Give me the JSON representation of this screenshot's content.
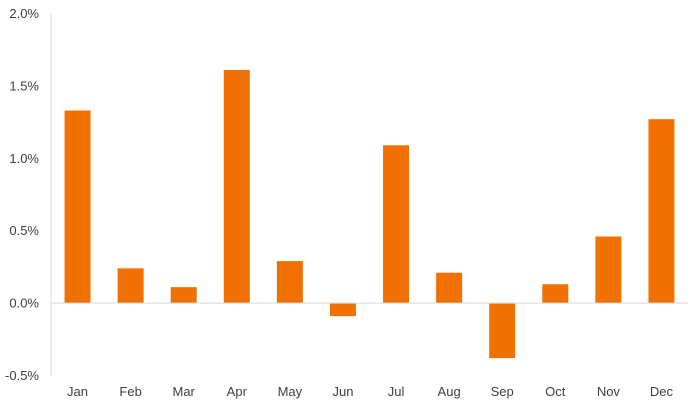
{
  "chart_data": {
    "type": "bar",
    "title": "",
    "xlabel": "",
    "ylabel": "",
    "categories": [
      "Jan",
      "Feb",
      "Mar",
      "Apr",
      "May",
      "Jun",
      "Jul",
      "Aug",
      "Sep",
      "Oct",
      "Nov",
      "Dec"
    ],
    "values": [
      1.33,
      0.24,
      0.11,
      1.61,
      0.29,
      -0.09,
      1.09,
      0.21,
      -0.38,
      0.13,
      0.46,
      1.27
    ],
    "unit": "%",
    "ylim": [
      -0.5,
      2.0
    ],
    "yticks": [
      -0.5,
      0.0,
      0.5,
      1.0,
      1.5,
      2.0
    ],
    "ytick_labels": [
      "-0.5%",
      "0.0%",
      "0.5%",
      "1.0%",
      "1.5%",
      "2.0%"
    ],
    "grid": false,
    "legend": "none",
    "bar_color": "#F07000"
  }
}
